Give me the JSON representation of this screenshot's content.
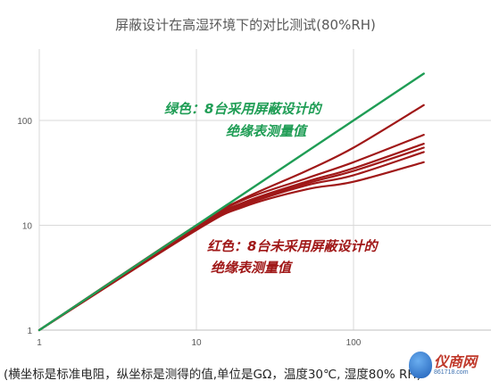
{
  "chart_data": {
    "type": "line",
    "title": "屏蔽设计在高湿环境下的对比测试(80%RH)",
    "x_scale": "log",
    "y_scale": "log",
    "xlim": [
      1,
      300
    ],
    "ylim": [
      1,
      600
    ],
    "x_ticks": [
      "1",
      "10",
      "100"
    ],
    "y_ticks": [
      "1",
      "10",
      "100"
    ],
    "grid": true,
    "annotations": [
      {
        "name": "green-note",
        "line1": "绿色：8台采用屏蔽设计的",
        "line2": "绝缘表测量值",
        "color": "#1f9d55"
      },
      {
        "name": "red-note",
        "line1": "红色：8台未采用屏蔽设计的",
        "line2": "绝缘表测量值",
        "color": "#a01818"
      }
    ],
    "series": [
      {
        "color": "#1f9d55",
        "x": [
          1,
          10,
          100,
          280
        ],
        "y": [
          1,
          10,
          100,
          280
        ]
      },
      {
        "color": "#a01818",
        "x": [
          1,
          10,
          20,
          50,
          100,
          280
        ],
        "y": [
          1,
          10,
          18,
          33,
          55,
          140
        ]
      },
      {
        "color": "#a01818",
        "x": [
          1,
          10,
          20,
          50,
          100,
          280
        ],
        "y": [
          1,
          9.8,
          17.5,
          28,
          40,
          73
        ]
      },
      {
        "color": "#a01818",
        "x": [
          1,
          10,
          20,
          50,
          100,
          280
        ],
        "y": [
          1,
          9.6,
          16.5,
          26,
          35,
          60
        ]
      },
      {
        "color": "#a01818",
        "x": [
          1,
          10,
          20,
          50,
          100,
          280
        ],
        "y": [
          1,
          9.4,
          16,
          25,
          33,
          55
        ]
      },
      {
        "color": "#a01818",
        "x": [
          1,
          10,
          20,
          50,
          100,
          280
        ],
        "y": [
          1,
          9.2,
          15.5,
          24,
          30,
          50
        ]
      },
      {
        "color": "#a01818",
        "x": [
          1,
          10,
          20,
          50,
          100,
          280
        ],
        "y": [
          1,
          9.0,
          15,
          22,
          26,
          40
        ]
      }
    ]
  },
  "caption": "(横坐标是标准电阻，纵坐标是测得的值,单位是GΩ，温度30℃, 湿度80% RH)",
  "logo": {
    "text": "仪商网",
    "sub": "861718.com"
  }
}
